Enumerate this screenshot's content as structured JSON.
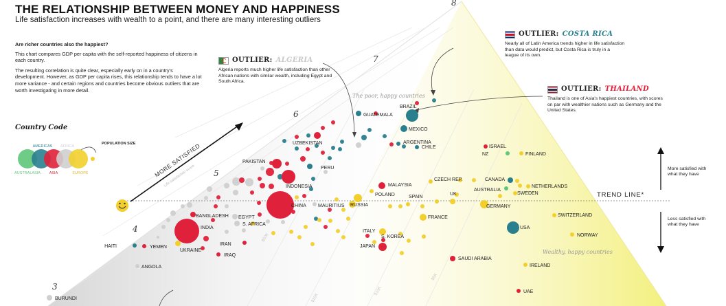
{
  "header": {
    "title": "THE RELATIONSHIP BETWEEN MONEY AND HAPPINESS",
    "subtitle": "Life satisfaction increases with wealth to a point, and there are many interesting outliers"
  },
  "intro": {
    "question": "Are richer countries also the happiest?",
    "p1": "This chart compares GDP per capita with the self-reported happiness of citizens in each country.",
    "p2": "The resulting correlation is quite clear, especially early on in a country's development. However, as GDP per capita rises, this relationship tends to have a lot more variance - and certain regions and countries become obvious outliers that are worth investigating in more detail."
  },
  "legend": {
    "title": "Country Code",
    "population_label": "POPULATION SIZE",
    "regions": [
      {
        "name": "AMERICAS",
        "color": "#2a7f8f"
      },
      {
        "name": "AFRICA",
        "color": "#cfcfcf"
      },
      {
        "name": "AUSTRALASIA",
        "color": "#5ec77a"
      },
      {
        "name": "ASIA",
        "color": "#e0213b"
      },
      {
        "name": "EUROPE",
        "color": "#f2cf2c"
      }
    ]
  },
  "outliers": {
    "algeria": {
      "label": "OUTLIER:",
      "name": "ALGERIA",
      "text": "Algeria reports much higher life satisfaction than other African nations with similar wealth, including Egypt and South Africa."
    },
    "costa_rica": {
      "label": "OUTLIER:",
      "name": "COSTA RICA",
      "text": "Nearly all of Latin America trends higher in life satisfaction than data would predict, but Costa Rica is truly in a league of its own."
    },
    "thailand": {
      "label": "OUTLIER:",
      "name": "THAILAND",
      "text": "Thailand is one of Asia's happiest countries, with scores on par with wealthier nations such as Germany and the United States."
    }
  },
  "annotations": {
    "more_satisfied_axis": "MORE SATISFIED",
    "life_satisfaction_axis": "Life satisfaction score",
    "poor_happy": "The poor, happy countries",
    "wealthy_happy": "Wealthy, happy countries",
    "trend_line": "TREND LINE*",
    "more_satisfied_note": "More satisfied with what they have",
    "less_satisfied_note": "Less satisfied with what they have",
    "happy_icon": "smiley-face-icon"
  },
  "chart_data": {
    "type": "scatter",
    "title": "THE RELATIONSHIP BETWEEN MONEY AND HAPPINESS",
    "ylabel": "Life satisfaction score",
    "y_ticks": [
      "3",
      "4",
      "5",
      "6",
      "7",
      "8"
    ],
    "x_band_labels": [
      "$50K",
      "$20K",
      "$10K",
      "$5K"
    ],
    "colors": {
      "americas": "#2a7f8f",
      "africa": "#cfcfcf",
      "australasia": "#5ec77a",
      "asia": "#e0213b",
      "europe": "#f2cf2c"
    },
    "points": [
      {
        "label": "BURUNDI",
        "region": "africa"
      },
      {
        "label": "ANGOLA",
        "region": "africa"
      },
      {
        "label": "HAITI",
        "region": "americas"
      },
      {
        "label": "YEMEN",
        "region": "asia"
      },
      {
        "label": "UKRAINE",
        "region": "europe"
      },
      {
        "label": "INDIA",
        "region": "asia"
      },
      {
        "label": "BANGLADESH",
        "region": "asia"
      },
      {
        "label": "EGYPT",
        "region": "africa"
      },
      {
        "label": "S. AFRICA",
        "region": "africa"
      },
      {
        "label": "IRAN",
        "region": "asia"
      },
      {
        "label": "IRAQ",
        "region": "asia"
      },
      {
        "label": "PAKISTAN",
        "region": "asia"
      },
      {
        "label": "INDONESIA",
        "region": "asia"
      },
      {
        "label": "PERU",
        "region": "americas"
      },
      {
        "label": "UZBEKISTAN",
        "region": "asia"
      },
      {
        "label": "CHINA",
        "region": "asia"
      },
      {
        "label": "MAURITIUS",
        "region": "africa"
      },
      {
        "label": "RUSSIA",
        "region": "europe"
      },
      {
        "label": "GUATEMALA",
        "region": "americas"
      },
      {
        "label": "BRAZIL",
        "region": "americas"
      },
      {
        "label": "MEXICO",
        "region": "americas"
      },
      {
        "label": "ARGENTINA",
        "region": "americas"
      },
      {
        "label": "CHILE",
        "region": "americas"
      },
      {
        "label": "MALAYSIA",
        "region": "asia"
      },
      {
        "label": "POLAND",
        "region": "europe"
      },
      {
        "label": "SPAIN",
        "region": "europe"
      },
      {
        "label": "CZECH REP.",
        "region": "europe"
      },
      {
        "label": "UK",
        "region": "europe"
      },
      {
        "label": "FRANCE",
        "region": "europe"
      },
      {
        "label": "ITALY",
        "region": "europe"
      },
      {
        "label": "S. KOREA",
        "region": "asia"
      },
      {
        "label": "JAPAN",
        "region": "asia"
      },
      {
        "label": "ISRAEL",
        "region": "asia"
      },
      {
        "label": "NZ",
        "region": "australasia"
      },
      {
        "label": "FINLAND",
        "region": "europe"
      },
      {
        "label": "CANADA",
        "region": "americas"
      },
      {
        "label": "AUSTRALIA",
        "region": "australasia"
      },
      {
        "label": "NETHERLANDS",
        "region": "europe"
      },
      {
        "label": "SWEDEN",
        "region": "europe"
      },
      {
        "label": "GERMANY",
        "region": "europe"
      },
      {
        "label": "SWITZERLAND",
        "region": "europe"
      },
      {
        "label": "USA",
        "region": "americas"
      },
      {
        "label": "NORWAY",
        "region": "europe"
      },
      {
        "label": "SAUDI ARABIA",
        "region": "asia"
      },
      {
        "label": "IRELAND",
        "region": "europe"
      },
      {
        "label": "UAE",
        "region": "asia"
      }
    ]
  }
}
